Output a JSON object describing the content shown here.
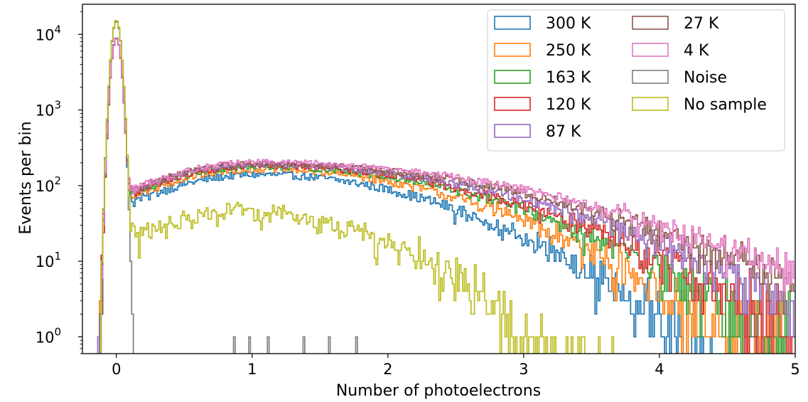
{
  "chart_data": {
    "type": "histogram",
    "title": "",
    "xlabel": "Number of photoelectrons",
    "ylabel": "Events per bin",
    "xlim": [
      -0.25,
      5
    ],
    "ylim": [
      0.6,
      25000
    ],
    "yscale": "log",
    "grid": false,
    "legend_position": "top-right",
    "legend_columns": 2,
    "x_ticks": [
      {
        "value": 0,
        "label": "0"
      },
      {
        "value": 1,
        "label": "1"
      },
      {
        "value": 2,
        "label": "2"
      },
      {
        "value": 3,
        "label": "3"
      },
      {
        "value": 4,
        "label": "4"
      },
      {
        "value": 5,
        "label": "5"
      }
    ],
    "y_ticks": [
      {
        "value": 1,
        "base": "10",
        "exp": "0"
      },
      {
        "value": 10,
        "base": "10",
        "exp": "1"
      },
      {
        "value": 100,
        "base": "10",
        "exp": "2"
      },
      {
        "value": 1000,
        "base": "10",
        "exp": "3"
      },
      {
        "value": 10000,
        "base": "10",
        "exp": "4"
      }
    ],
    "bin_width": 0.0125,
    "series": [
      {
        "name": "300 K",
        "color": "#1f77b4",
        "pedestal_peak": 9000,
        "spe_peak": 140,
        "spe_mu": 1.05,
        "spe_sigma_low": 0.72,
        "spe_sigma_high": 1.0,
        "valley": 50
      },
      {
        "name": "250 K",
        "color": "#ff7f0e",
        "pedestal_peak": 9000,
        "spe_peak": 165,
        "spe_mu": 1.05,
        "spe_sigma_low": 0.72,
        "spe_sigma_high": 1.1,
        "valley": 55
      },
      {
        "name": "163 K",
        "color": "#2ca02c",
        "pedestal_peak": 9000,
        "spe_peak": 180,
        "spe_mu": 1.05,
        "spe_sigma_low": 0.72,
        "spe_sigma_high": 1.2,
        "valley": 58
      },
      {
        "name": "120 K",
        "color": "#d62728",
        "pedestal_peak": 9000,
        "spe_peak": 185,
        "spe_mu": 1.05,
        "spe_sigma_low": 0.72,
        "spe_sigma_high": 1.25,
        "valley": 58
      },
      {
        "name": "87 K",
        "color": "#9467bd",
        "pedestal_peak": 9000,
        "spe_peak": 190,
        "spe_mu": 1.05,
        "spe_sigma_low": 0.72,
        "spe_sigma_high": 1.35,
        "valley": 60
      },
      {
        "name": "27 K",
        "color": "#8c564b",
        "pedestal_peak": 9000,
        "spe_peak": 195,
        "spe_mu": 1.05,
        "spe_sigma_low": 0.72,
        "spe_sigma_high": 1.45,
        "valley": 60
      },
      {
        "name": "4 K",
        "color": "#e377c2",
        "pedestal_peak": 9000,
        "spe_peak": 205,
        "spe_mu": 1.05,
        "spe_sigma_low": 0.72,
        "spe_sigma_high": 1.5,
        "valley": 62
      },
      {
        "name": "Noise",
        "color": "#7f7f7f",
        "pedestal_peak": 15000,
        "spe_peak": 0,
        "spe_mu": 0,
        "spe_sigma_low": 1,
        "spe_sigma_high": 1,
        "valley": 0,
        "isolated_counts_x": [
          0.87,
          0.98,
          1.12,
          1.38,
          1.57,
          1.77
        ]
      },
      {
        "name": "No sample",
        "color": "#bcbd22",
        "pedestal_peak": 15500,
        "spe_peak": 45,
        "spe_mu": 0.95,
        "spe_sigma_low": 0.65,
        "spe_sigma_high": 0.75,
        "valley": 18
      }
    ]
  }
}
